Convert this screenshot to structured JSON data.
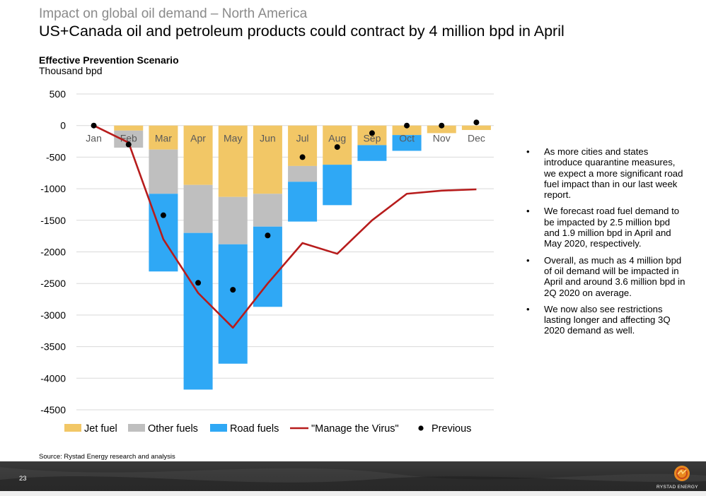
{
  "header": {
    "kicker": "Impact on global oil demand – North America",
    "title": "US+Canada oil and petroleum products could contract by 4 million bpd in April",
    "subtitle": "Effective Prevention Scenario",
    "unit": "Thousand bpd"
  },
  "chart_data": {
    "type": "bar",
    "stacked": true,
    "categories": [
      "Jan",
      "Feb",
      "Mar",
      "Apr",
      "May",
      "Jun",
      "Jul",
      "Aug",
      "Sep",
      "Oct",
      "Nov",
      "Dec"
    ],
    "series": [
      {
        "name": "Jet fuel",
        "color": "#f2c766",
        "values": [
          0,
          -80,
          -380,
          -940,
          -1130,
          -1080,
          -640,
          -620,
          -310,
          -150,
          -120,
          -70
        ]
      },
      {
        "name": "Other fuels",
        "color": "#bfbfbf",
        "values": [
          0,
          -270,
          -700,
          -760,
          -750,
          -520,
          -250,
          0,
          0,
          0,
          0,
          0
        ]
      },
      {
        "name": "Road fuels",
        "color": "#2fa8f5",
        "values": [
          0,
          0,
          -1230,
          -2480,
          -1890,
          -1270,
          -630,
          -640,
          -250,
          -250,
          0,
          0
        ]
      }
    ],
    "lines": [
      {
        "name": "\"Manage the Virus\"",
        "color": "#b71c1c",
        "values": [
          0,
          -270,
          -1800,
          -2650,
          -3200,
          -2500,
          -1860,
          -2030,
          -1500,
          -1080,
          -1030,
          -1010
        ]
      }
    ],
    "points": [
      {
        "name": "Previous",
        "color": "#000000",
        "values": [
          0,
          -300,
          -1420,
          -2490,
          -2600,
          -1740,
          -500,
          -340,
          -120,
          0,
          0,
          50
        ]
      }
    ],
    "yaxis": {
      "ticks": [
        500,
        0,
        -500,
        -1000,
        -1500,
        -2000,
        -2500,
        -3000,
        -3500,
        -4000,
        -4500
      ],
      "ylim": [
        -4500,
        500
      ]
    },
    "grid": true,
    "legend_position": "bottom"
  },
  "bullets": [
    "As more cities and states introduce quarantine measures, we expect a more significant road fuel impact than in our last week report.",
    "We forecast road fuel demand to be impacted by 2.5 million bpd and 1.9 million bpd in April and May 2020, respectively.",
    "Overall, as much as 4 million bpd of oil demand will be impacted in April and around 3.6 million bpd in 2Q 2020 on average.",
    "We now also see restrictions lasting longer and affecting 3Q 2020 demand as well."
  ],
  "source": "Source: Rystad Energy research and analysis",
  "footer": {
    "page_number": "23",
    "brand": "RYSTAD ENERGY"
  }
}
